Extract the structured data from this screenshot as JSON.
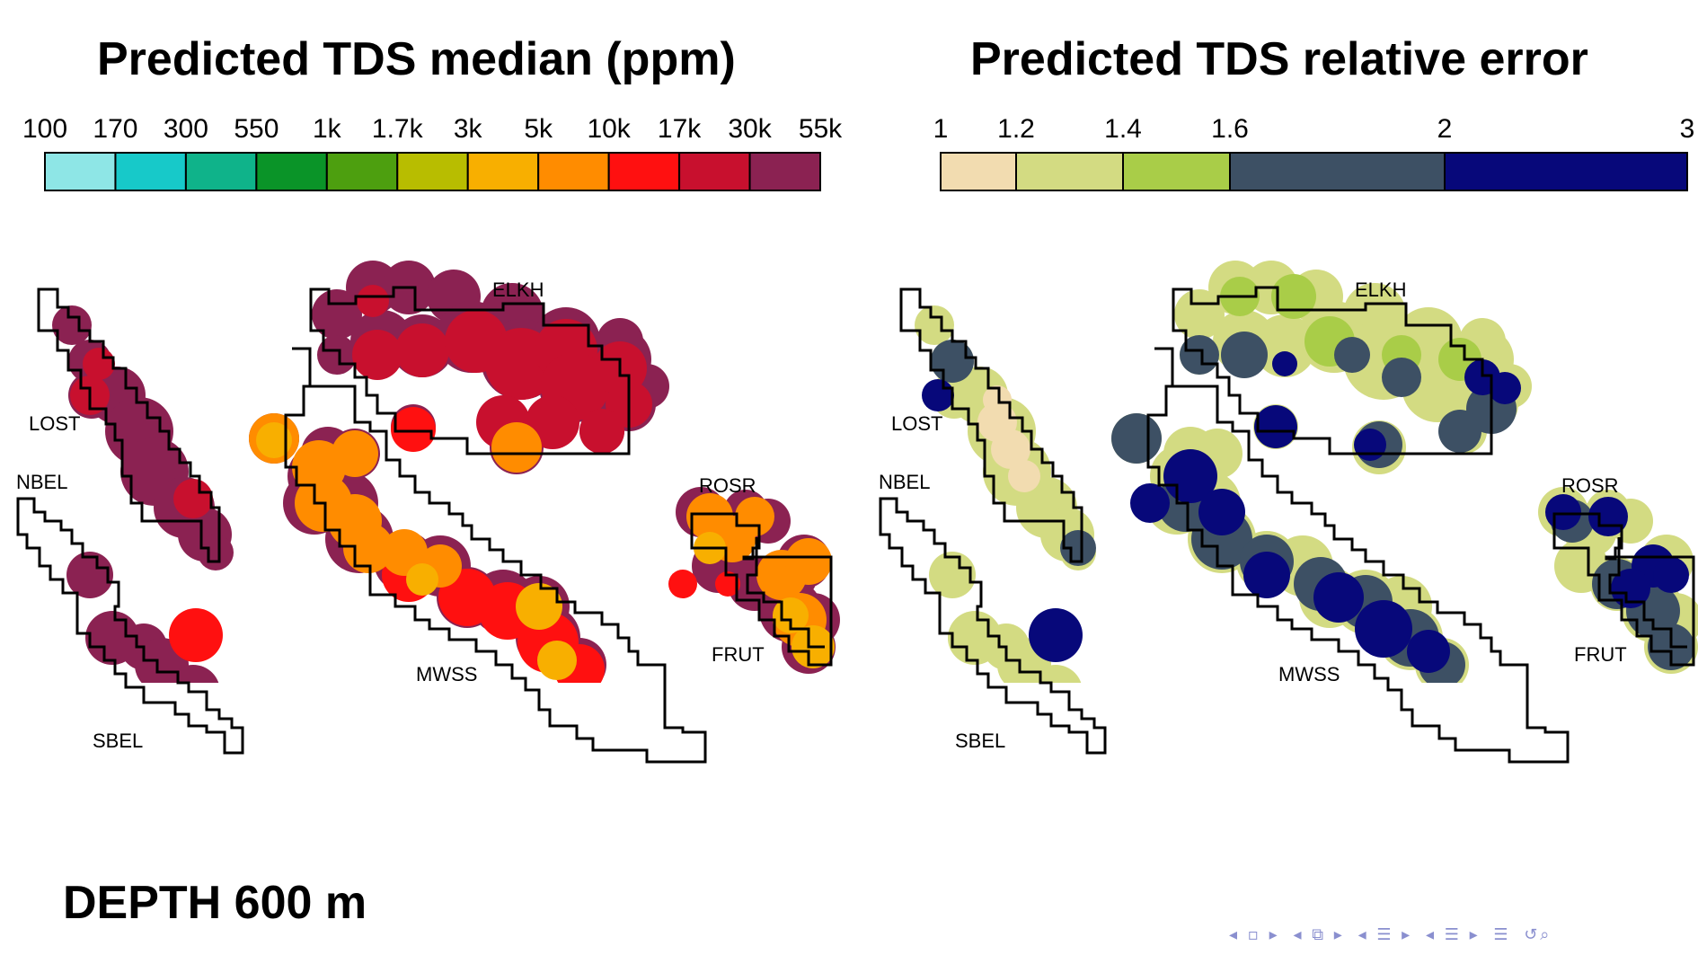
{
  "left_panel": {
    "title": "Predicted TDS median (ppm)",
    "colorbar": {
      "ticks": [
        "100",
        "170",
        "300",
        "550",
        "1k",
        "1.7k",
        "3k",
        "5k",
        "10k",
        "17k",
        "30k",
        "55k"
      ],
      "colors": [
        "#8ee6e6",
        "#17c9c9",
        "#0fb38a",
        "#0a9428",
        "#4d9f0f",
        "#b8bd00",
        "#f8af00",
        "#ff8c00",
        "#ff1010",
        "#c8102e",
        "#8b2252"
      ]
    }
  },
  "right_panel": {
    "title": "Predicted TDS relative error",
    "colorbar": {
      "ticks": [
        "1",
        "1.2",
        "1.4",
        "1.6",
        "2",
        "3"
      ],
      "tick_values": [
        1,
        1.2,
        1.4,
        1.6,
        2,
        3
      ],
      "colors": [
        "#f2dcb0",
        "#d3db82",
        "#a9cd48",
        "#3d5064",
        "#07087a"
      ]
    }
  },
  "regions": {
    "elkh": "ELKH",
    "lost": "LOST",
    "nbel": "NBEL",
    "rosr": "ROSR",
    "mwss": "MWSS",
    "frut": "FRUT",
    "sbel": "SBEL"
  },
  "depth_label": "DEPTH 600 m",
  "nav_icons": [
    "nav-prev-icon",
    "frame-icon",
    "nav-next-icon",
    "section-icon",
    "subsection-icon",
    "outline-icon",
    "search-icon"
  ]
}
